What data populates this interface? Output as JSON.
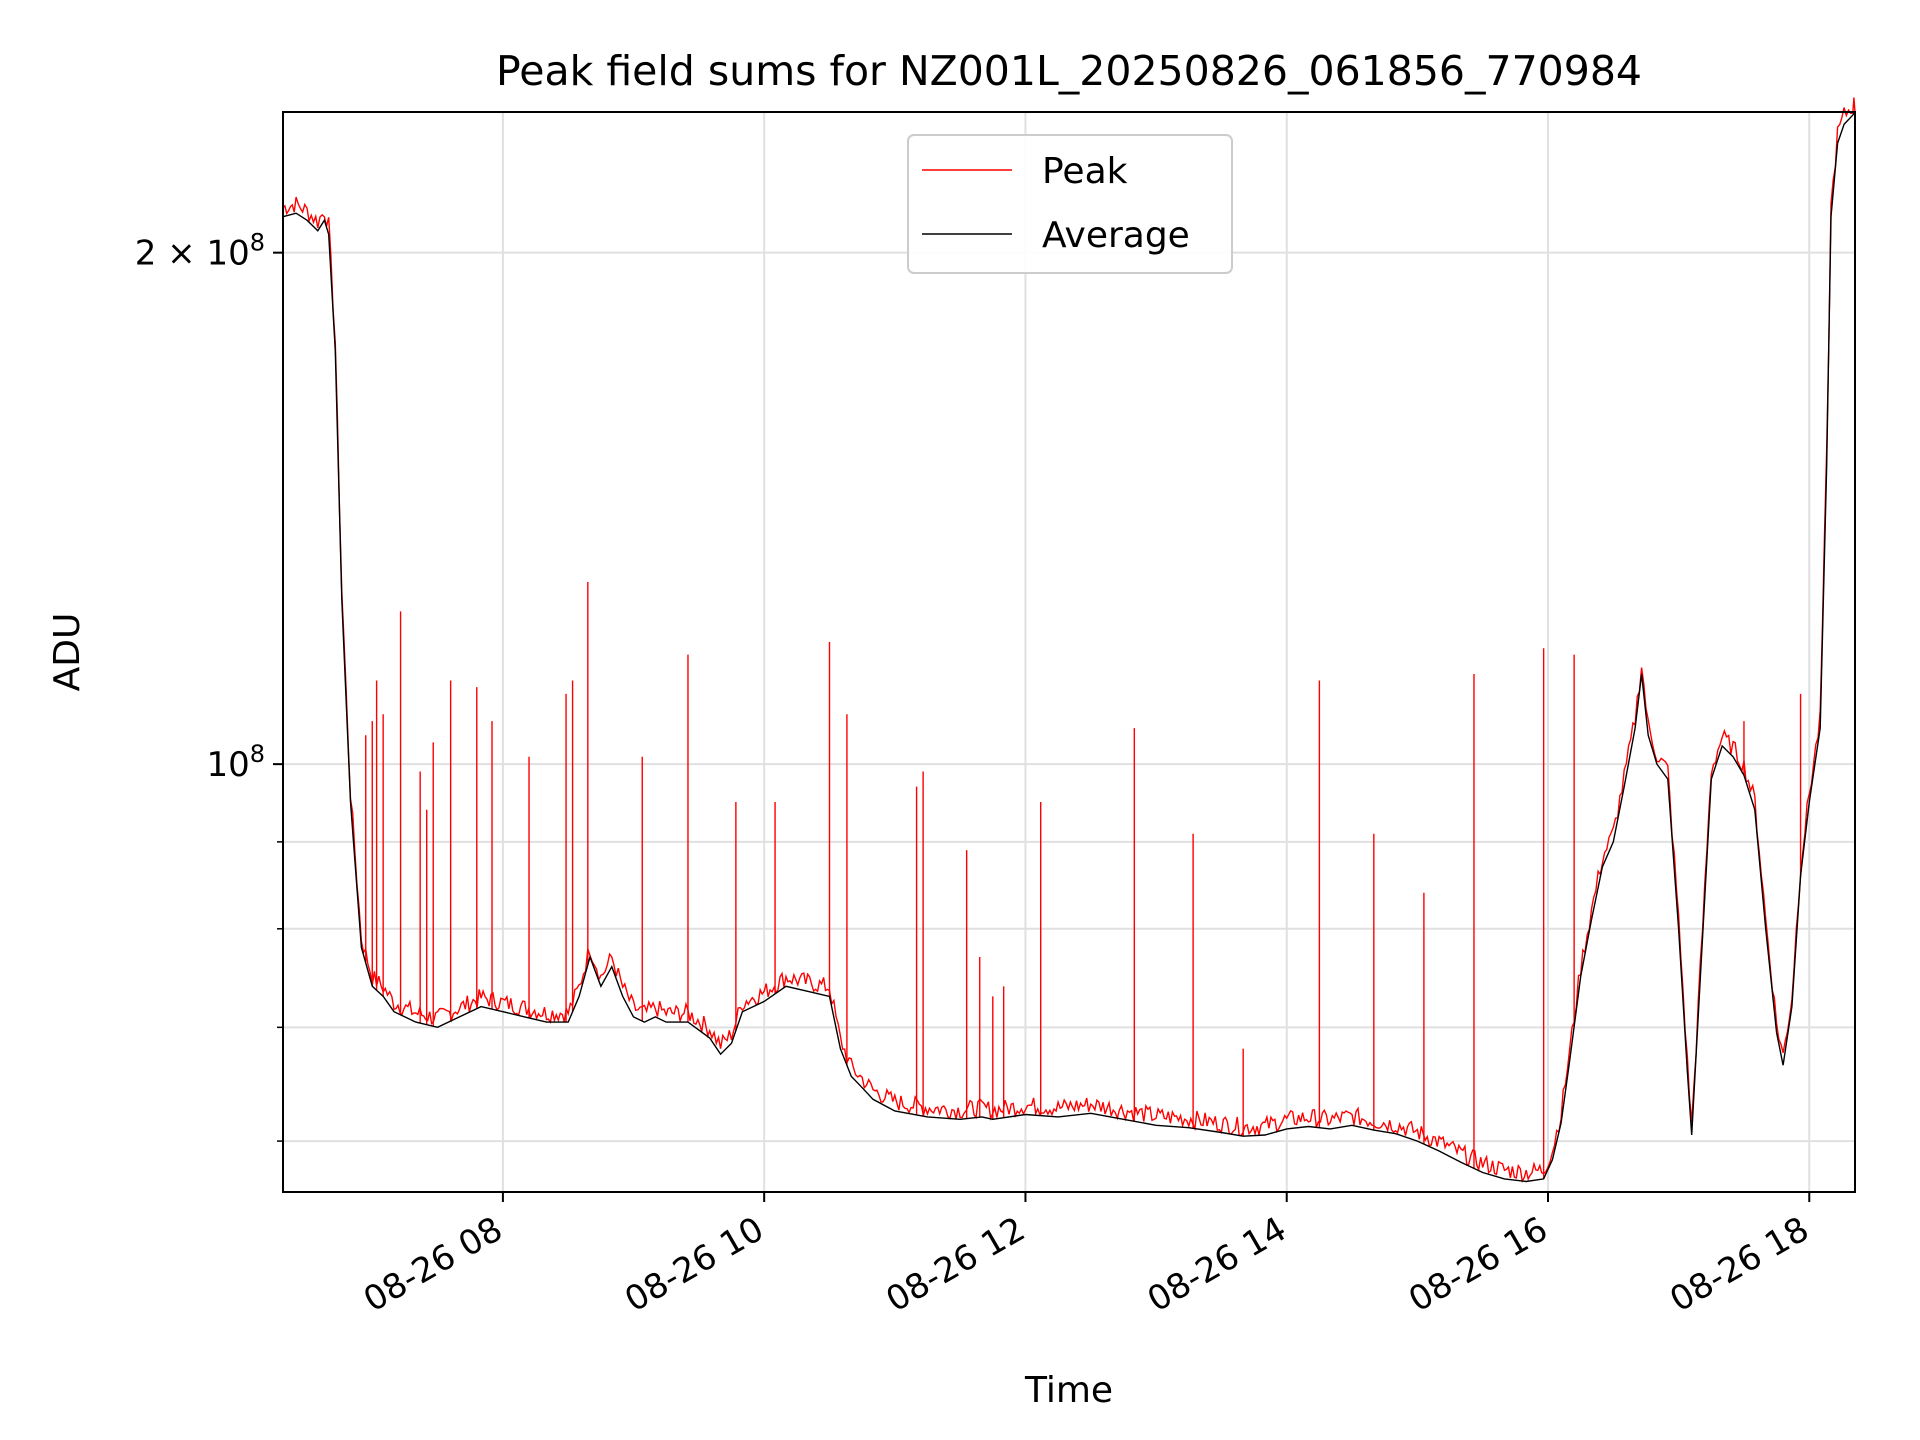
{
  "chart_data": {
    "type": "line",
    "title": "Peak field sums for NZ001L_20250826_061856_770984",
    "xlabel": "Time",
    "ylabel": "ADU",
    "yscale": "log",
    "xlim": [
      "2025-08-26 06:19",
      "2025-08-26 18:21"
    ],
    "ylim": [
      56000000,
      242000000
    ],
    "grid": true,
    "legend_position": "top-center",
    "x_ticks": [
      {
        "value": "2025-08-26 08:00",
        "label": "08-26 08"
      },
      {
        "value": "2025-08-26 10:00",
        "label": "08-26 10"
      },
      {
        "value": "2025-08-26 12:00",
        "label": "08-26 12"
      },
      {
        "value": "2025-08-26 14:00",
        "label": "08-26 14"
      },
      {
        "value": "2025-08-26 16:00",
        "label": "08-26 16"
      },
      {
        "value": "2025-08-26 18:00",
        "label": "08-26 18"
      }
    ],
    "y_major_ticks": [
      {
        "value": 100000000,
        "mantissa": "",
        "exponent": "8"
      },
      {
        "value": 200000000,
        "mantissa": "2",
        "exponent": "8"
      }
    ],
    "y_minor_ticks": [
      60000000,
      70000000,
      80000000,
      90000000
    ],
    "series": [
      {
        "name": "Average",
        "color": "#000000",
        "x": [
          "2025-08-26 06:19",
          "2025-08-26 06:25",
          "2025-08-26 06:30",
          "2025-08-26 06:35",
          "2025-08-26 06:38",
          "2025-08-26 06:40",
          "2025-08-26 06:43",
          "2025-08-26 06:46",
          "2025-08-26 06:50",
          "2025-08-26 06:55",
          "2025-08-26 07:00",
          "2025-08-26 07:05",
          "2025-08-26 07:10",
          "2025-08-26 07:20",
          "2025-08-26 07:30",
          "2025-08-26 07:40",
          "2025-08-26 07:50",
          "2025-08-26 08:00",
          "2025-08-26 08:10",
          "2025-08-26 08:20",
          "2025-08-26 08:30",
          "2025-08-26 08:35",
          "2025-08-26 08:40",
          "2025-08-26 08:45",
          "2025-08-26 08:50",
          "2025-08-26 08:55",
          "2025-08-26 09:00",
          "2025-08-26 09:05",
          "2025-08-26 09:10",
          "2025-08-26 09:15",
          "2025-08-26 09:25",
          "2025-08-26 09:35",
          "2025-08-26 09:40",
          "2025-08-26 09:45",
          "2025-08-26 09:50",
          "2025-08-26 10:00",
          "2025-08-26 10:10",
          "2025-08-26 10:20",
          "2025-08-26 10:30",
          "2025-08-26 10:35",
          "2025-08-26 10:40",
          "2025-08-26 10:45",
          "2025-08-26 10:50",
          "2025-08-26 11:00",
          "2025-08-26 11:15",
          "2025-08-26 11:30",
          "2025-08-26 11:40",
          "2025-08-26 11:45",
          "2025-08-26 12:00",
          "2025-08-26 12:15",
          "2025-08-26 12:30",
          "2025-08-26 12:45",
          "2025-08-26 13:00",
          "2025-08-26 13:15",
          "2025-08-26 13:30",
          "2025-08-26 13:40",
          "2025-08-26 13:50",
          "2025-08-26 14:00",
          "2025-08-26 14:10",
          "2025-08-26 14:20",
          "2025-08-26 14:30",
          "2025-08-26 14:40",
          "2025-08-26 14:50",
          "2025-08-26 15:00",
          "2025-08-26 15:10",
          "2025-08-26 15:20",
          "2025-08-26 15:30",
          "2025-08-26 15:40",
          "2025-08-26 15:50",
          "2025-08-26 15:58",
          "2025-08-26 16:02",
          "2025-08-26 16:06",
          "2025-08-26 16:10",
          "2025-08-26 16:15",
          "2025-08-26 16:20",
          "2025-08-26 16:25",
          "2025-08-26 16:30",
          "2025-08-26 16:35",
          "2025-08-26 16:40",
          "2025-08-26 16:43",
          "2025-08-26 16:46",
          "2025-08-26 16:50",
          "2025-08-26 16:55",
          "2025-08-26 17:00",
          "2025-08-26 17:04",
          "2025-08-26 17:06",
          "2025-08-26 17:10",
          "2025-08-26 17:15",
          "2025-08-26 17:20",
          "2025-08-26 17:25",
          "2025-08-26 17:30",
          "2025-08-26 17:35",
          "2025-08-26 17:40",
          "2025-08-26 17:45",
          "2025-08-26 17:48",
          "2025-08-26 17:52",
          "2025-08-26 17:56",
          "2025-08-26 18:00",
          "2025-08-26 18:05",
          "2025-08-26 18:08",
          "2025-08-26 18:10",
          "2025-08-26 18:13",
          "2025-08-26 18:16",
          "2025-08-26 18:20",
          "2025-08-26 18:21"
        ],
        "y": [
          210000000,
          211000000,
          209000000,
          206000000,
          209000000,
          205000000,
          175000000,
          125000000,
          95000000,
          78000000,
          74000000,
          73000000,
          71500000,
          70500000,
          70000000,
          71000000,
          72000000,
          71500000,
          71000000,
          70500000,
          70500000,
          73000000,
          77000000,
          74000000,
          76000000,
          73000000,
          71000000,
          70500000,
          71000000,
          70500000,
          70500000,
          69000000,
          67500000,
          68500000,
          71500000,
          72500000,
          74000000,
          73500000,
          73000000,
          68000000,
          65500000,
          64500000,
          63500000,
          62500000,
          62000000,
          61800000,
          62000000,
          61800000,
          62200000,
          62000000,
          62300000,
          61800000,
          61300000,
          61100000,
          60700000,
          60400000,
          60500000,
          61000000,
          61200000,
          61000000,
          61300000,
          60900000,
          60600000,
          60000000,
          59200000,
          58300000,
          57500000,
          57000000,
          56800000,
          57000000,
          58500000,
          61500000,
          67000000,
          75000000,
          81000000,
          87000000,
          90000000,
          97000000,
          105000000,
          113000000,
          104000000,
          100000000,
          98000000,
          80000000,
          66000000,
          60500000,
          75000000,
          98000000,
          102500000,
          101000000,
          98500000,
          94000000,
          80000000,
          69500000,
          66500000,
          72000000,
          86000000,
          95000000,
          105000000,
          150000000,
          210000000,
          232000000,
          238000000,
          241000000,
          242000000
        ]
      },
      {
        "name": "Peak",
        "color": "#ff0000",
        "spikes": [
          {
            "x": "2025-08-26 06:57",
            "y": 104000000
          },
          {
            "x": "2025-08-26 07:00",
            "y": 106000000
          },
          {
            "x": "2025-08-26 07:02",
            "y": 112000000
          },
          {
            "x": "2025-08-26 07:05",
            "y": 107000000
          },
          {
            "x": "2025-08-26 07:13",
            "y": 123000000
          },
          {
            "x": "2025-08-26 07:22",
            "y": 99000000
          },
          {
            "x": "2025-08-26 07:25",
            "y": 94000000
          },
          {
            "x": "2025-08-26 07:28",
            "y": 103000000
          },
          {
            "x": "2025-08-26 07:36",
            "y": 112000000
          },
          {
            "x": "2025-08-26 07:48",
            "y": 111000000
          },
          {
            "x": "2025-08-26 07:55",
            "y": 106000000
          },
          {
            "x": "2025-08-26 08:12",
            "y": 101000000
          },
          {
            "x": "2025-08-26 08:29",
            "y": 110000000
          },
          {
            "x": "2025-08-26 08:32",
            "y": 112000000
          },
          {
            "x": "2025-08-26 08:39",
            "y": 128000000
          },
          {
            "x": "2025-08-26 09:04",
            "y": 101000000
          },
          {
            "x": "2025-08-26 09:25",
            "y": 116000000
          },
          {
            "x": "2025-08-26 09:47",
            "y": 95000000
          },
          {
            "x": "2025-08-26 10:05",
            "y": 95000000
          },
          {
            "x": "2025-08-26 10:30",
            "y": 118000000
          },
          {
            "x": "2025-08-26 10:38",
            "y": 107000000
          },
          {
            "x": "2025-08-26 11:10",
            "y": 97000000
          },
          {
            "x": "2025-08-26 11:13",
            "y": 99000000
          },
          {
            "x": "2025-08-26 11:33",
            "y": 89000000
          },
          {
            "x": "2025-08-26 11:39",
            "y": 77000000
          },
          {
            "x": "2025-08-26 11:45",
            "y": 73000000
          },
          {
            "x": "2025-08-26 11:50",
            "y": 74000000
          },
          {
            "x": "2025-08-26 12:07",
            "y": 95000000
          },
          {
            "x": "2025-08-26 12:50",
            "y": 105000000
          },
          {
            "x": "2025-08-26 13:17",
            "y": 91000000
          },
          {
            "x": "2025-08-26 13:40",
            "y": 68000000
          },
          {
            "x": "2025-08-26 14:15",
            "y": 112000000
          },
          {
            "x": "2025-08-26 14:40",
            "y": 91000000
          },
          {
            "x": "2025-08-26 15:03",
            "y": 84000000
          },
          {
            "x": "2025-08-26 15:26",
            "y": 113000000
          },
          {
            "x": "2025-08-26 15:58",
            "y": 117000000
          },
          {
            "x": "2025-08-26 16:12",
            "y": 116000000
          },
          {
            "x": "2025-08-26 17:30",
            "y": 106000000
          },
          {
            "x": "2025-08-26 17:56",
            "y": 110000000
          }
        ]
      }
    ]
  }
}
